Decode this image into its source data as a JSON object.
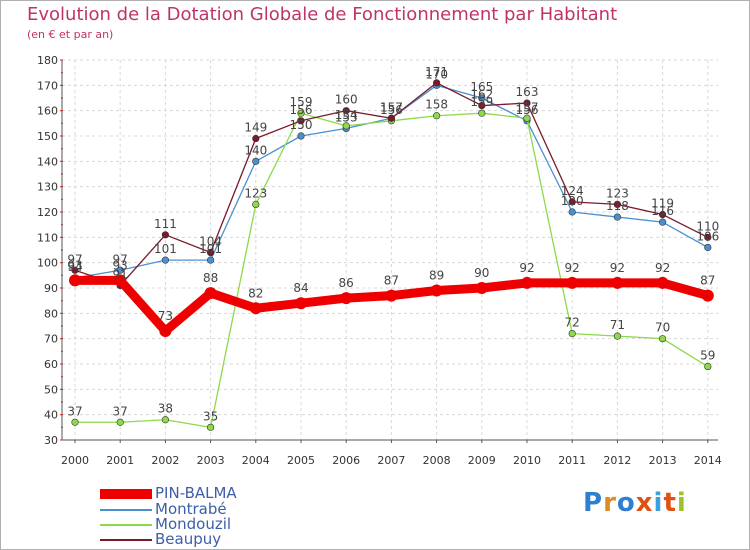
{
  "header": {
    "title": "Evolution de la Dotation Globale de Fonctionnement par Habitant",
    "subtitle": "(en € et par an)"
  },
  "chart_data": {
    "type": "line",
    "title": "Evolution de la Dotation Globale de Fonctionnement par Habitant",
    "subtitle": "(en € et par an)",
    "xlabel": "",
    "ylabel": "",
    "ylim": [
      30,
      180
    ],
    "yticks": [
      30,
      40,
      50,
      60,
      70,
      80,
      90,
      100,
      110,
      120,
      130,
      140,
      150,
      160,
      170,
      180
    ],
    "grid": true,
    "legend_position": "bottom-left",
    "categories": [
      "2000",
      "2001",
      "2002",
      "2003",
      "2004",
      "2005",
      "2006",
      "2007",
      "2008",
      "2009",
      "2010",
      "2011",
      "2012",
      "2013",
      "2014"
    ],
    "series": [
      {
        "name": "Montrabé",
        "color": "#4a90d0",
        "values": [
          94,
          97,
          101,
          101,
          140,
          150,
          153,
          157,
          170,
          165,
          156,
          120,
          118,
          116,
          106
        ]
      },
      {
        "name": "Mondouzil",
        "color": "#8ed94a",
        "values": [
          37,
          37,
          38,
          35,
          123,
          159,
          154,
          156,
          158,
          159,
          157,
          72,
          71,
          70,
          59
        ]
      },
      {
        "name": "Beaupuy",
        "color": "#7a1a2a",
        "values": [
          97,
          91,
          111,
          104,
          149,
          156,
          160,
          157,
          171,
          162,
          163,
          124,
          123,
          119,
          110
        ]
      },
      {
        "name": "PIN-BALMA",
        "color": "#ee0000",
        "values": [
          93,
          93,
          73,
          88,
          82,
          84,
          86,
          87,
          89,
          90,
          92,
          92,
          92,
          92,
          87
        ]
      }
    ]
  },
  "legend": {
    "items": [
      {
        "label": "PIN-BALMA",
        "color": "#ee0000"
      },
      {
        "label": "Montrabé",
        "color": "#4a90d0"
      },
      {
        "label": "Mondouzil",
        "color": "#8ed94a"
      },
      {
        "label": "Beaupuy",
        "color": "#7a1a2a"
      }
    ]
  },
  "logo": {
    "text": "Proxiti",
    "letter_colors": [
      "#2f7fd0",
      "#e08a20",
      "#2f7fd0",
      "#e05010",
      "#3aa0e0",
      "#e05010",
      "#9cc32a"
    ]
  }
}
